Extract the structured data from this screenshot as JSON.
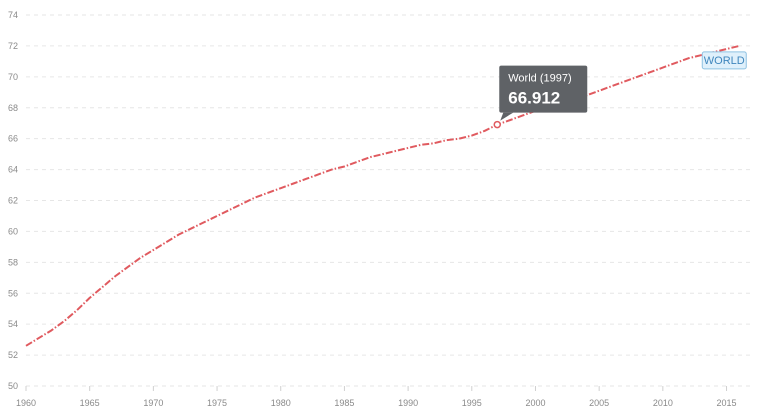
{
  "chart_data": {
    "type": "line",
    "title": "",
    "xlabel": "",
    "ylabel": "",
    "xlim": [
      1960,
      2017
    ],
    "ylim": [
      50,
      74
    ],
    "x_ticks": [
      1960,
      1965,
      1970,
      1975,
      1980,
      1985,
      1990,
      1995,
      2000,
      2005,
      2010,
      2015
    ],
    "y_ticks": [
      50,
      52,
      54,
      56,
      58,
      60,
      62,
      64,
      66,
      68,
      70,
      72,
      74
    ],
    "grid": true,
    "line_color": "#e05a5f",
    "series": [
      {
        "name": "WORLD",
        "x": [
          1960,
          1961,
          1962,
          1963,
          1964,
          1965,
          1966,
          1967,
          1968,
          1969,
          1970,
          1971,
          1972,
          1973,
          1974,
          1975,
          1976,
          1977,
          1978,
          1979,
          1980,
          1981,
          1982,
          1983,
          1984,
          1985,
          1986,
          1987,
          1988,
          1989,
          1990,
          1991,
          1992,
          1993,
          1994,
          1995,
          1996,
          1997,
          1998,
          1999,
          2000,
          2001,
          2002,
          2003,
          2004,
          2005,
          2006,
          2007,
          2008,
          2009,
          2010,
          2011,
          2012,
          2013,
          2014,
          2015,
          2016
        ],
        "values": [
          52.6,
          53.1,
          53.6,
          54.2,
          54.9,
          55.7,
          56.4,
          57.1,
          57.7,
          58.3,
          58.8,
          59.3,
          59.8,
          60.2,
          60.6,
          61.0,
          61.4,
          61.8,
          62.2,
          62.5,
          62.8,
          63.1,
          63.4,
          63.7,
          64.0,
          64.2,
          64.5,
          64.8,
          65.0,
          65.2,
          65.4,
          65.6,
          65.7,
          65.9,
          66.0,
          66.2,
          66.5,
          66.912,
          67.2,
          67.5,
          67.8,
          68.0,
          68.2,
          68.5,
          68.8,
          69.1,
          69.4,
          69.7,
          70.0,
          70.3,
          70.6,
          70.9,
          71.2,
          71.4,
          71.6,
          71.8,
          72.0
        ]
      }
    ],
    "tooltip": {
      "title": "World (1997)",
      "value": "66.912",
      "x": 1997,
      "y": 66.912
    },
    "series_tag": "WORLD"
  }
}
